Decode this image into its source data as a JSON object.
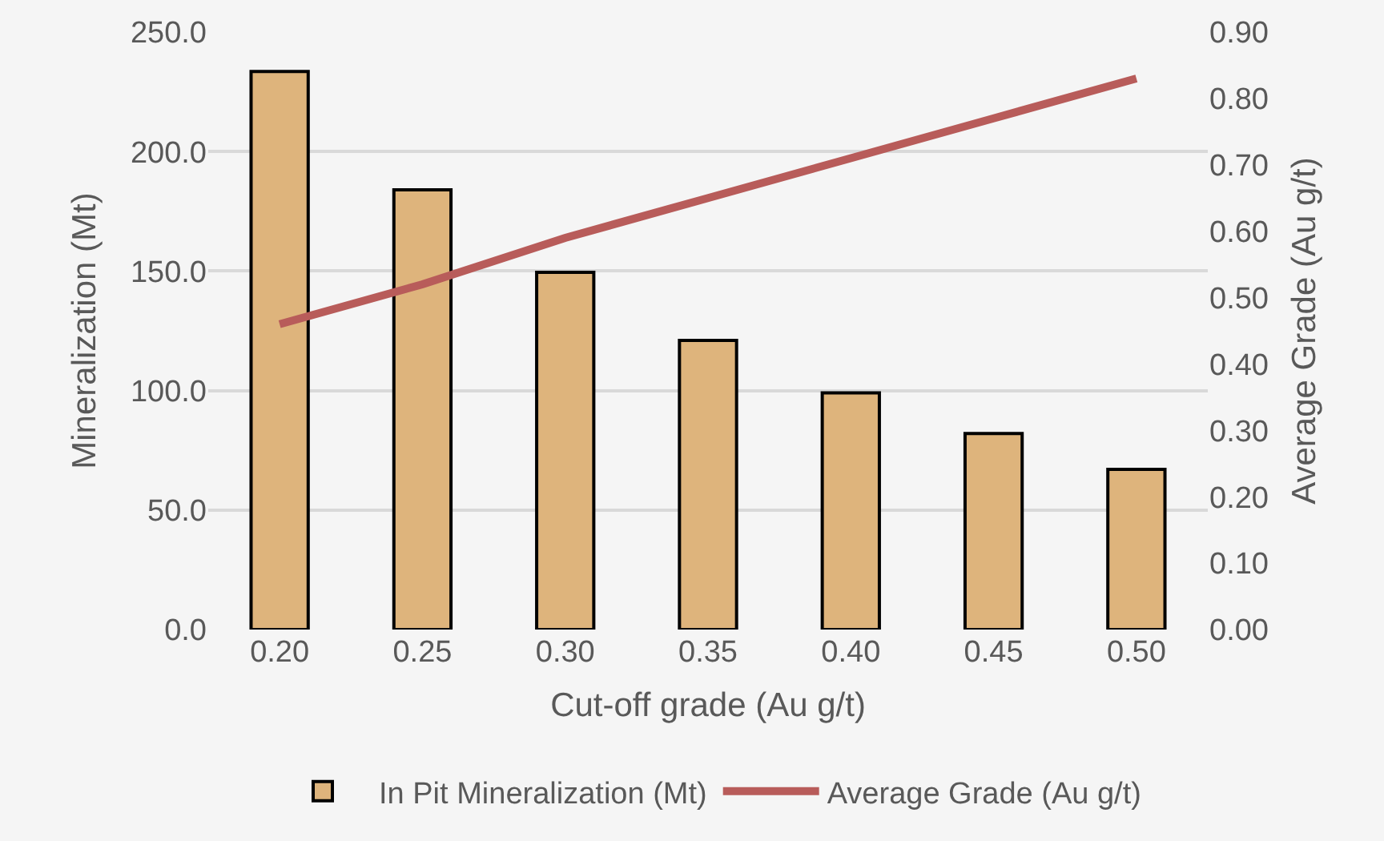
{
  "chart_data": {
    "type": "bar",
    "xlabel": "Cut-off grade (Au g/t)",
    "ylabel": "Mineralization (Mt)",
    "y2label": "Average Grade (Au g/t)",
    "categories": [
      "0.20",
      "0.25",
      "0.30",
      "0.35",
      "0.40",
      "0.45",
      "0.50"
    ],
    "series": [
      {
        "name": "In Pit Mineralization (Mt)",
        "color": "#deb47c",
        "values": [
          233.5,
          184,
          149.5,
          121,
          99,
          82,
          67
        ]
      },
      {
        "name": "Average Grade (Au g/t)",
        "type": "line",
        "axis": "y2",
        "color": "#b85c5a",
        "marker": "none",
        "values": [
          0.46,
          0.52,
          0.59,
          0.65,
          0.71,
          0.77,
          0.83
        ]
      }
    ],
    "ylim": [
      0,
      250
    ],
    "yticks": [
      {
        "value": 0,
        "label": "0.0"
      },
      {
        "value": 50,
        "label": "50.0"
      },
      {
        "value": 100,
        "label": "100.0"
      },
      {
        "value": 150,
        "label": "150.0"
      },
      {
        "value": 200,
        "label": "200.0"
      },
      {
        "value": 250,
        "label": "250.0"
      }
    ],
    "y2lim": [
      0,
      0.9
    ],
    "y2ticks": [
      {
        "value": 0,
        "label": "0.00"
      },
      {
        "value": 0.1,
        "label": "0.10"
      },
      {
        "value": 0.2,
        "label": "0.20"
      },
      {
        "value": 0.3,
        "label": "0.30"
      },
      {
        "value": 0.4,
        "label": "0.40"
      },
      {
        "value": 0.5,
        "label": "0.50"
      },
      {
        "value": 0.6,
        "label": "0.60"
      },
      {
        "value": 0.7,
        "label": "0.70"
      },
      {
        "value": 0.8,
        "label": "0.80"
      },
      {
        "value": 0.9,
        "label": "0.90"
      }
    ],
    "grid": "y",
    "legend": "bottom"
  }
}
